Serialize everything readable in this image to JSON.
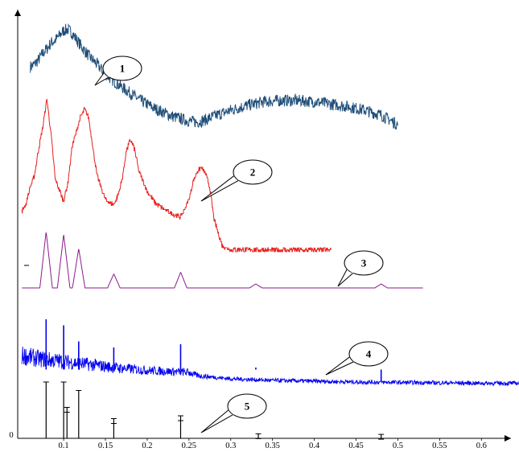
{
  "chart_data": {
    "type": "line",
    "title": "",
    "xlabel": "",
    "ylabel": "",
    "xlim": [
      0.045,
      0.645
    ],
    "x_ticks": [
      "0",
      "0.1",
      "0.15",
      "0.2",
      "0.25",
      "0.3",
      "0.35",
      "0.4",
      "0.45",
      "0.5",
      "0.55",
      "0.6"
    ],
    "grid": false,
    "series": [
      {
        "label": "1",
        "color": "#1f4e79",
        "noise": 0.05,
        "x": [
          0.06,
          0.065,
          0.07,
          0.075,
          0.08,
          0.085,
          0.09,
          0.095,
          0.1,
          0.105,
          0.11,
          0.115,
          0.12,
          0.13,
          0.14,
          0.15,
          0.16,
          0.17,
          0.18,
          0.19,
          0.2,
          0.21,
          0.22,
          0.23,
          0.24,
          0.25,
          0.26,
          0.27,
          0.28,
          0.3,
          0.32,
          0.34,
          0.36,
          0.38,
          0.4,
          0.42,
          0.44,
          0.46,
          0.48,
          0.49,
          0.5
        ],
        "y": [
          0.78,
          0.8,
          0.84,
          0.89,
          0.93,
          0.98,
          1.0,
          1.04,
          1.08,
          1.09,
          1.06,
          1.01,
          0.96,
          0.87,
          0.8,
          0.72,
          0.66,
          0.61,
          0.56,
          0.51,
          0.47,
          0.43,
          0.4,
          0.37,
          0.35,
          0.33,
          0.32,
          0.34,
          0.37,
          0.42,
          0.46,
          0.49,
          0.5,
          0.5,
          0.49,
          0.47,
          0.45,
          0.42,
          0.38,
          0.34,
          0.3
        ]
      },
      {
        "label": "2",
        "color": "#e8211d",
        "noise": 0.03,
        "x": [
          0.05,
          0.055,
          0.06,
          0.065,
          0.07,
          0.075,
          0.08,
          0.085,
          0.09,
          0.1,
          0.105,
          0.11,
          0.12,
          0.125,
          0.13,
          0.135,
          0.14,
          0.15,
          0.16,
          0.165,
          0.17,
          0.175,
          0.18,
          0.185,
          0.19,
          0.2,
          0.21,
          0.22,
          0.23,
          0.24,
          0.25,
          0.255,
          0.26,
          0.265,
          0.27,
          0.275,
          0.28,
          0.29,
          0.3,
          0.35,
          0.4,
          0.42
        ],
        "y": [
          0.55,
          0.65,
          0.85,
          1.0,
          1.32,
          1.6,
          1.95,
          1.5,
          0.95,
          0.68,
          0.9,
          1.35,
          1.72,
          1.82,
          1.72,
          1.35,
          1.0,
          0.7,
          0.63,
          0.75,
          0.95,
          1.3,
          1.45,
          1.32,
          1.05,
          0.8,
          0.65,
          0.58,
          0.52,
          0.48,
          0.7,
          0.92,
          1.05,
          1.1,
          1.02,
          0.85,
          0.45,
          0.12,
          0.08,
          0.07,
          0.07,
          0.07
        ]
      },
      {
        "label": "3",
        "color": "#8b1a8b",
        "noise": 0,
        "peaks": [
          [
            0.079,
            1.0
          ],
          [
            0.1,
            0.95
          ],
          [
            0.118,
            0.7
          ],
          [
            0.16,
            0.25
          ],
          [
            0.24,
            0.28
          ],
          [
            0.33,
            0.07
          ],
          [
            0.48,
            0.07
          ]
        ],
        "x": [
          0.05,
          0.53
        ],
        "y": [
          0,
          0
        ]
      },
      {
        "label": "4",
        "color": "#0000ee",
        "noise": 0.35,
        "spikes": [
          [
            0.079,
            1.6
          ],
          [
            0.1,
            1.45
          ],
          [
            0.118,
            1.05
          ],
          [
            0.16,
            0.9
          ],
          [
            0.24,
            0.98
          ],
          [
            0.33,
            0.4
          ],
          [
            0.48,
            0.05
          ]
        ],
        "x": [
          0.05,
          0.07,
          0.1,
          0.13,
          0.16,
          0.2,
          0.23,
          0.25,
          0.26,
          0.3,
          0.35,
          0.4,
          0.45,
          0.5,
          0.55,
          0.6,
          0.645
        ],
        "y": [
          0.7,
          0.62,
          0.55,
          0.48,
          0.4,
          0.33,
          0.3,
          0.28,
          0.2,
          0.12,
          0.08,
          0.06,
          0.04,
          0.03,
          0.02,
          0.01,
          0.01
        ]
      },
      {
        "label": "5",
        "color": "#000000",
        "bars": [
          [
            0.079,
            1.0
          ],
          [
            0.1,
            1.0
          ],
          [
            0.104,
            0.55
          ],
          [
            0.118,
            0.85
          ],
          [
            0.16,
            0.35
          ],
          [
            0.24,
            0.4
          ],
          [
            0.333,
            0.08
          ],
          [
            0.48,
            0.07
          ]
        ]
      }
    ]
  }
}
